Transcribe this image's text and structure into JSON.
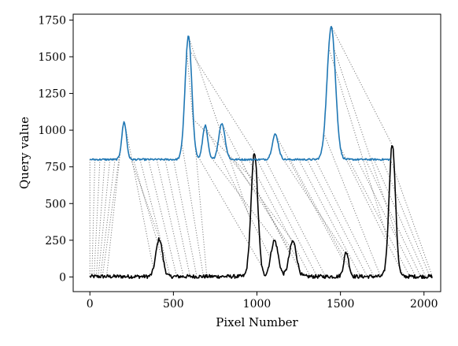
{
  "chart_data": {
    "type": "line",
    "title": "",
    "xlabel": "Pixel Number",
    "ylabel": "Query value",
    "xlim": [
      -100,
      2100
    ],
    "ylim": [
      -100,
      1790
    ],
    "x_ticks": [
      0,
      500,
      1000,
      1500,
      2000
    ],
    "y_ticks": [
      0,
      250,
      500,
      750,
      1000,
      1250,
      1500,
      1750
    ],
    "grid": false,
    "legend": "none",
    "series": [
      {
        "color": "#1f77b4",
        "x_range": [
          0,
          1800
        ],
        "baseline": 800,
        "noise_amplitude": 6,
        "peaks": [
          {
            "center": 205,
            "height": 255,
            "width": 14
          },
          {
            "center": 590,
            "height": 840,
            "width": 20
          },
          {
            "center": 690,
            "height": 232,
            "width": 15
          },
          {
            "center": 790,
            "height": 245,
            "width": 19
          },
          {
            "center": 1110,
            "height": 172,
            "width": 18
          },
          {
            "center": 1445,
            "height": 910,
            "width": 25
          }
        ]
      },
      {
        "color": "#000000",
        "x_range": [
          0,
          2050
        ],
        "baseline": 3,
        "noise_amplitude": 13,
        "peaks": [
          {
            "center": 415,
            "height": 255,
            "width": 20
          },
          {
            "center": 985,
            "height": 845,
            "width": 20
          },
          {
            "center": 1105,
            "height": 245,
            "width": 22
          },
          {
            "center": 1215,
            "height": 240,
            "width": 22
          },
          {
            "center": 1535,
            "height": 165,
            "width": 15
          },
          {
            "center": 1810,
            "height": 905,
            "width": 19
          }
        ]
      }
    ],
    "alignment_links": {
      "style": "dotted",
      "color": "#7f7f7f",
      "from_series": 0,
      "to_series": 1,
      "pairs": [
        [
          0,
          0
        ],
        [
          30,
          12
        ],
        [
          60,
          25
        ],
        [
          90,
          38
        ],
        [
          120,
          50
        ],
        [
          150,
          63
        ],
        [
          180,
          75
        ],
        [
          200,
          100
        ],
        [
          210,
          380
        ],
        [
          230,
          420
        ],
        [
          260,
          450
        ],
        [
          300,
          480
        ],
        [
          350,
          520
        ],
        [
          400,
          560
        ],
        [
          450,
          600
        ],
        [
          500,
          640
        ],
        [
          550,
          680
        ],
        [
          580,
          700
        ],
        [
          590,
          960
        ],
        [
          600,
          985
        ],
        [
          620,
          1000
        ],
        [
          650,
          1030
        ],
        [
          690,
          1080
        ],
        [
          730,
          1110
        ],
        [
          790,
          1195
        ],
        [
          830,
          1220
        ],
        [
          860,
          1240
        ],
        [
          900,
          1275
        ],
        [
          950,
          1320
        ],
        [
          1000,
          1360
        ],
        [
          1050,
          1410
        ],
        [
          1110,
          1520
        ],
        [
          1150,
          1545
        ],
        [
          1200,
          1580
        ],
        [
          1250,
          1620
        ],
        [
          1300,
          1660
        ],
        [
          1350,
          1700
        ],
        [
          1400,
          1740
        ],
        [
          1430,
          1780
        ],
        [
          1445,
          1808
        ],
        [
          1460,
          1840
        ],
        [
          1500,
          1880
        ],
        [
          1550,
          1915
        ],
        [
          1600,
          1950
        ],
        [
          1650,
          1980
        ],
        [
          1700,
          2010
        ],
        [
          1750,
          2035
        ],
        [
          1800,
          2050
        ]
      ]
    }
  }
}
